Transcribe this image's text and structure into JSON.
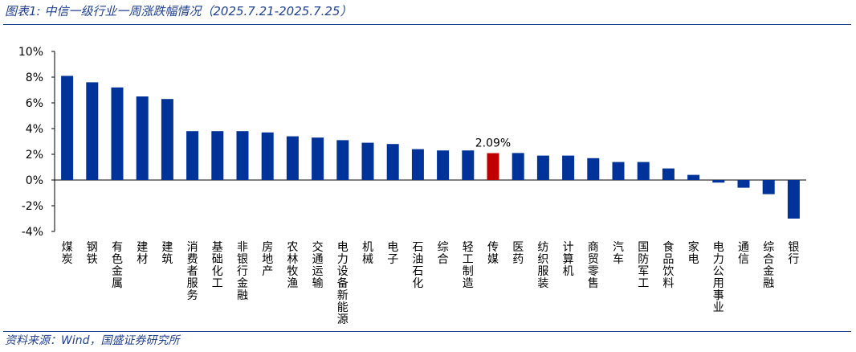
{
  "header": {
    "title": "图表1: 中信一级行业一周涨跌幅情况（2025.7.21-2025.7.25）"
  },
  "footer": {
    "source": "资料来源：Wind，国盛证券研究所"
  },
  "colors": {
    "bar": "#003399",
    "highlight": "#c00000",
    "rule": "#1f3f8f"
  },
  "chart_data": {
    "type": "bar",
    "title": "",
    "xlabel": "",
    "ylabel": "",
    "ylim": [
      -4,
      10
    ],
    "yticks": [
      "10%",
      "8%",
      "6%",
      "4%",
      "2%",
      "0%",
      "-2%",
      "-4%"
    ],
    "grid": false,
    "categories": [
      "煤炭",
      "钢铁",
      "有色金属",
      "建材",
      "建筑",
      "消费者服务",
      "基础化工",
      "非银行金融",
      "房地产",
      "农林牧渔",
      "交通运输",
      "电力设备新能源",
      "机械",
      "电子",
      "石油石化",
      "综合",
      "轻工制造",
      "传媒",
      "医药",
      "纺织服装",
      "计算机",
      "商贸零售",
      "汽车",
      "国防军工",
      "食品饮料",
      "家电",
      "电力公用事业",
      "通信",
      "综合金融",
      "银行"
    ],
    "values": [
      8.1,
      7.6,
      7.2,
      6.5,
      6.3,
      3.8,
      3.8,
      3.8,
      3.7,
      3.4,
      3.3,
      3.1,
      2.9,
      2.8,
      2.4,
      2.3,
      2.3,
      2.09,
      2.1,
      1.9,
      1.9,
      1.7,
      1.4,
      1.4,
      0.9,
      0.4,
      -0.2,
      -0.6,
      -1.1,
      -3.0
    ],
    "highlight_category": "传媒",
    "data_labels": [
      {
        "category": "传媒",
        "text": "2.09%"
      }
    ]
  }
}
